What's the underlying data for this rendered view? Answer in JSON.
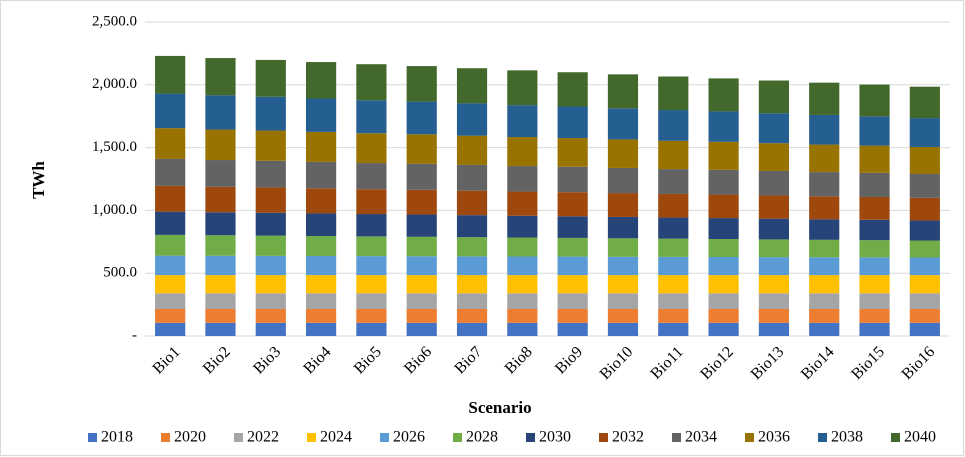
{
  "chart_data": {
    "type": "stacked_bar",
    "x_label": "Scenario",
    "y_label": "TWh",
    "categories": [
      "Bio1",
      "Bio2",
      "Bio3",
      "Bio4",
      "Bio5",
      "Bio6",
      "Bio7",
      "Bio8",
      "Bio9",
      "Bio10",
      "Bio11",
      "Bio12",
      "Bio13",
      "Bio14",
      "Bio15",
      "Bio16"
    ],
    "series": [
      {
        "name": "2018",
        "color": "#4472c4",
        "values": [
          105,
          105,
          105,
          105,
          105,
          105,
          105,
          105,
          105,
          105,
          105,
          105,
          105,
          105,
          105,
          105
        ]
      },
      {
        "name": "2020",
        "color": "#ed7d31",
        "values": [
          110,
          110,
          110,
          110,
          110,
          110,
          110,
          110,
          110,
          110,
          110,
          110,
          110,
          110,
          110,
          110
        ]
      },
      {
        "name": "2022",
        "color": "#a5a5a5",
        "values": [
          125,
          125,
          125,
          125,
          125,
          125,
          125,
          125,
          125,
          125,
          125,
          125,
          125,
          125,
          125,
          125
        ]
      },
      {
        "name": "2024",
        "color": "#ffc000",
        "values": [
          145,
          145,
          145,
          145,
          145,
          145,
          145,
          145,
          145,
          145,
          145,
          145,
          145,
          145,
          145,
          145
        ]
      },
      {
        "name": "2026",
        "color": "#5b9bd5",
        "values": [
          155,
          154,
          153,
          152,
          151,
          150,
          149,
          148,
          147,
          146,
          145,
          144,
          143,
          142,
          141,
          140
        ]
      },
      {
        "name": "2028",
        "color": "#70ad47",
        "values": [
          165,
          163,
          161,
          159,
          157,
          155,
          153,
          151,
          149,
          147,
          145,
          143,
          141,
          139,
          137,
          135
        ]
      },
      {
        "name": "2030",
        "color": "#264478",
        "values": [
          185,
          183,
          182,
          180,
          178,
          177,
          175,
          173,
          172,
          170,
          168,
          167,
          165,
          163,
          162,
          160
        ]
      },
      {
        "name": "2032",
        "color": "#9e480e",
        "values": [
          205,
          203,
          202,
          200,
          198,
          197,
          195,
          193,
          192,
          190,
          188,
          187,
          185,
          183,
          182,
          180
        ]
      },
      {
        "name": "2034",
        "color": "#636363",
        "values": [
          215,
          213,
          212,
          210,
          208,
          207,
          205,
          203,
          202,
          200,
          198,
          197,
          195,
          193,
          192,
          190
        ]
      },
      {
        "name": "2036",
        "color": "#997300",
        "values": [
          245,
          243,
          241,
          239,
          237,
          235,
          233,
          231,
          229,
          227,
          225,
          223,
          221,
          219,
          217,
          215
        ]
      },
      {
        "name": "2038",
        "color": "#255e91",
        "values": [
          275,
          272,
          269,
          266,
          263,
          260,
          257,
          254,
          251,
          248,
          245,
          242,
          239,
          236,
          233,
          230
        ]
      },
      {
        "name": "2040",
        "color": "#43682b",
        "values": [
          300,
          297,
          293,
          290,
          287,
          283,
          280,
          277,
          273,
          270,
          267,
          263,
          260,
          257,
          253,
          250
        ]
      }
    ],
    "ylim": [
      0,
      2500
    ],
    "yticks": [
      {
        "value": 0,
        "label": "-"
      },
      {
        "value": 500,
        "label": "500.0"
      },
      {
        "value": 1000,
        "label": "1,000.0"
      },
      {
        "value": 1500,
        "label": "1,500.0"
      },
      {
        "value": 2000,
        "label": "2,000.0"
      },
      {
        "value": 2500,
        "label": "2,500.0"
      }
    ],
    "grid": true,
    "legend": "bottom"
  }
}
